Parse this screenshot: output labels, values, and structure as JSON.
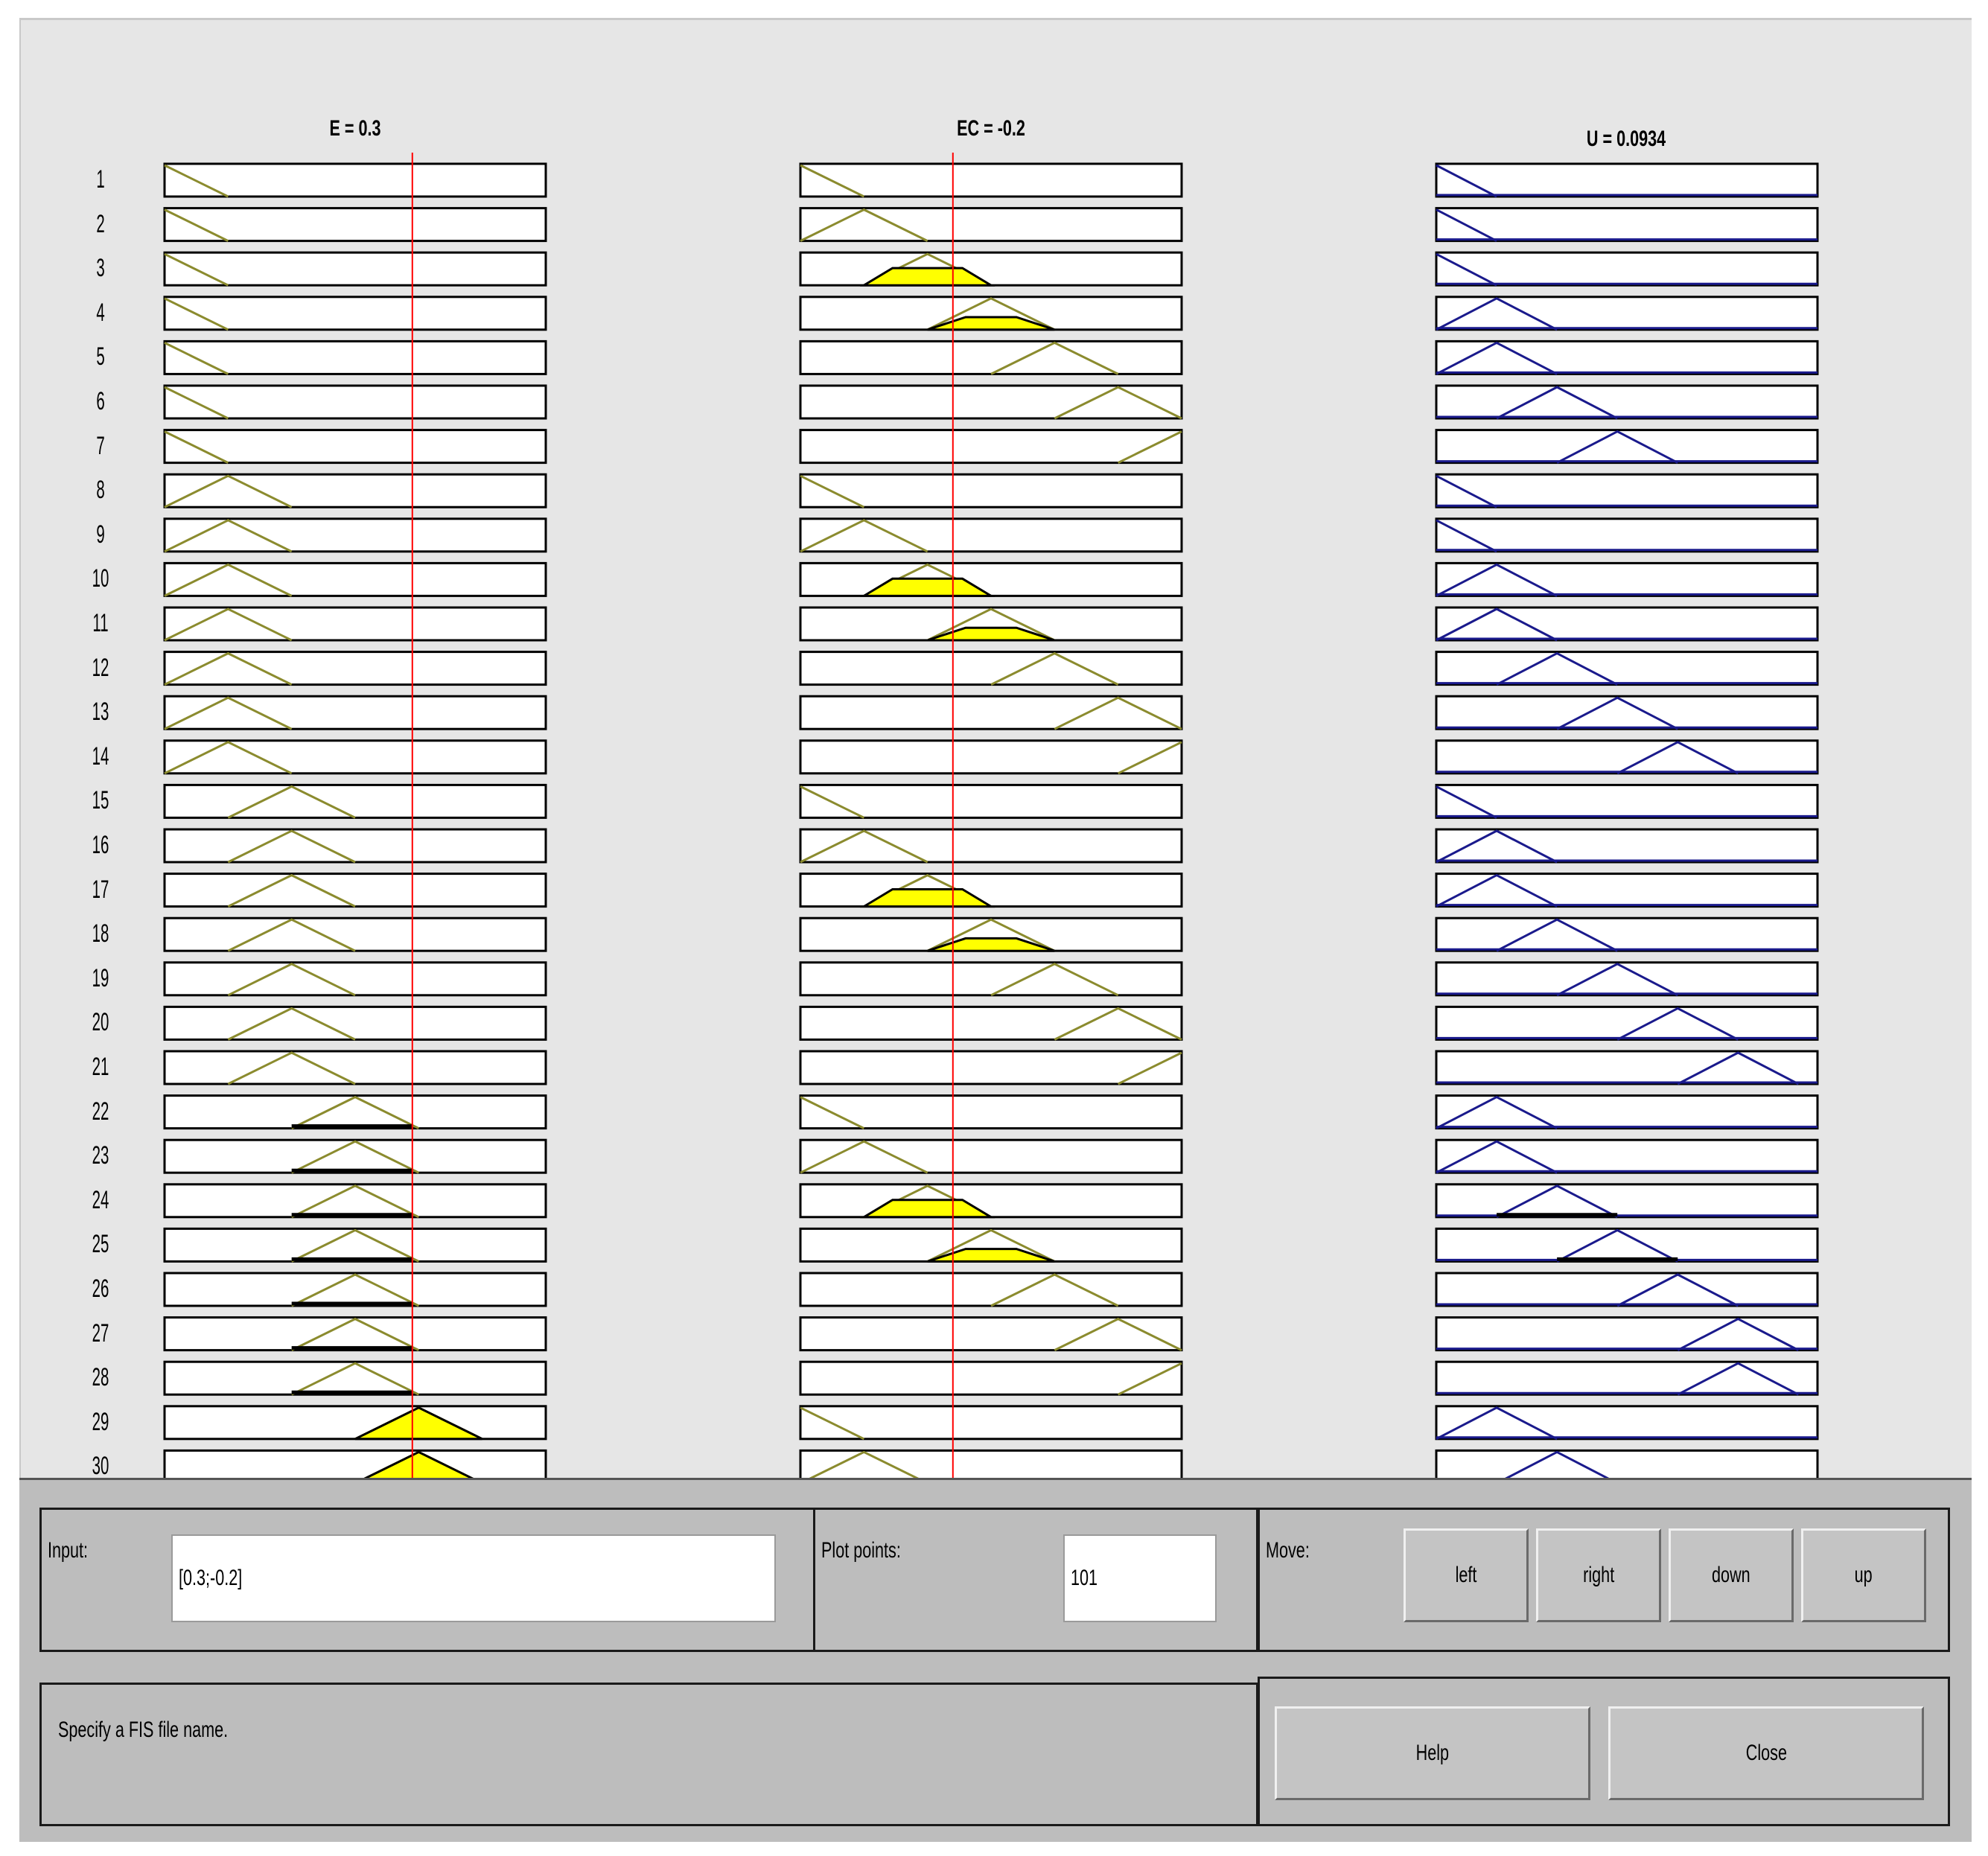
{
  "columns": [
    {
      "title": "E = 0.3",
      "color": "#8b8b2e",
      "line_value": 0.3
    },
    {
      "title": "EC = -0.2",
      "color": "#8b8b2e",
      "line_value": -0.2
    },
    {
      "title": "U = 0.0934",
      "color": "#1a1a8c"
    }
  ],
  "rows": [
    "1",
    "2",
    "3",
    "4",
    "5",
    "6",
    "7",
    "8",
    "9",
    "10",
    "11",
    "12",
    "13",
    "14",
    "15",
    "16",
    "17",
    "18",
    "19",
    "20",
    "21",
    "22",
    "23",
    "24",
    "25",
    "26",
    "27",
    "28",
    "29",
    "30"
  ],
  "input": {
    "label": "Input:",
    "value": "[0.3;-0.2]"
  },
  "plot_points": {
    "label": "Plot points:",
    "value": "101"
  },
  "move": {
    "label": "Move:",
    "buttons": [
      "left",
      "right",
      "down",
      "up"
    ]
  },
  "status": "Specify a FIS file name.",
  "help_label": "Help",
  "close_label": "Close",
  "colors": {
    "rule_line": "#ff0000",
    "fill": "#ffff00",
    "background": "#e6e6e6",
    "panel": "#bdbdbd"
  }
}
